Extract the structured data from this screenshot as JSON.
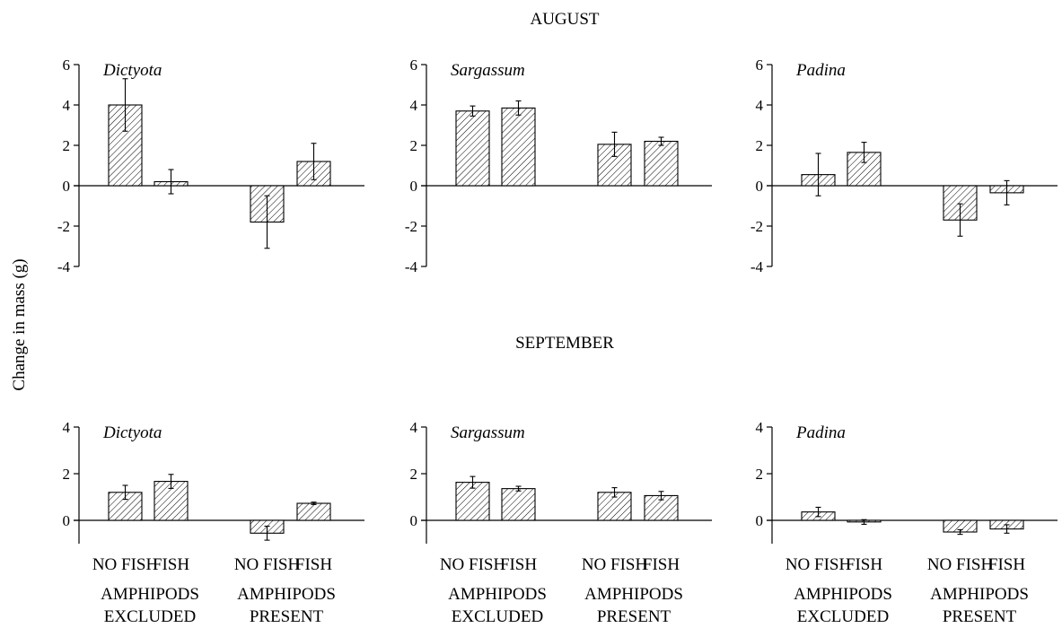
{
  "figure": {
    "ylabel": "Change in mass (g)",
    "categories": [
      "NO FISH",
      "FISH",
      "NO FISH",
      "FISH"
    ],
    "groups": [
      {
        "line1": "AMPHIPODS",
        "line2": "EXCLUDED"
      },
      {
        "line1": "AMPHIPODS",
        "line2": "PRESENT"
      }
    ],
    "rows": [
      {
        "title": "AUGUST",
        "ylim": [
          -4,
          6
        ],
        "yticks": [
          -4,
          -2,
          0,
          2,
          4,
          6
        ]
      },
      {
        "title": "SEPTEMBER",
        "ylim": [
          -1,
          4
        ],
        "yticks": [
          0,
          2,
          4
        ]
      }
    ]
  },
  "chart_data": [
    {
      "type": "bar",
      "month": "AUGUST",
      "title": "Dictyota",
      "categories": [
        "NO FISH",
        "FISH",
        "NO FISH",
        "FISH"
      ],
      "groups": [
        "AMPHIPODS EXCLUDED",
        "AMPHIPODS PRESENT"
      ],
      "values": [
        4.0,
        0.2,
        -1.8,
        1.2
      ],
      "errors": [
        1.3,
        0.6,
        1.3,
        0.9
      ],
      "ylim": [
        -4,
        6
      ]
    },
    {
      "type": "bar",
      "month": "AUGUST",
      "title": "Sargassum",
      "categories": [
        "NO FISH",
        "FISH",
        "NO FISH",
        "FISH"
      ],
      "groups": [
        "AMPHIPODS EXCLUDED",
        "AMPHIPODS PRESENT"
      ],
      "values": [
        3.7,
        3.85,
        2.05,
        2.2
      ],
      "errors": [
        0.25,
        0.35,
        0.6,
        0.2
      ],
      "ylim": [
        -4,
        6
      ]
    },
    {
      "type": "bar",
      "month": "AUGUST",
      "title": "Padina",
      "categories": [
        "NO FISH",
        "FISH",
        "NO FISH",
        "FISH"
      ],
      "groups": [
        "AMPHIPODS EXCLUDED",
        "AMPHIPODS PRESENT"
      ],
      "values": [
        0.55,
        1.65,
        -1.7,
        -0.35
      ],
      "errors": [
        1.05,
        0.5,
        0.8,
        0.6
      ],
      "ylim": [
        -4,
        6
      ]
    },
    {
      "type": "bar",
      "month": "SEPTEMBER",
      "title": "Dictyota",
      "categories": [
        "NO FISH",
        "FISH",
        "NO FISH",
        "FISH"
      ],
      "groups": [
        "AMPHIPODS EXCLUDED",
        "AMPHIPODS PRESENT"
      ],
      "values": [
        1.2,
        1.67,
        -0.55,
        0.73
      ],
      "errors": [
        0.3,
        0.3,
        0.3,
        0.05
      ],
      "ylim": [
        -1,
        4
      ]
    },
    {
      "type": "bar",
      "month": "SEPTEMBER",
      "title": "Sargassum",
      "categories": [
        "NO FISH",
        "FISH",
        "NO FISH",
        "FISH"
      ],
      "groups": [
        "AMPHIPODS EXCLUDED",
        "AMPHIPODS PRESENT"
      ],
      "values": [
        1.63,
        1.36,
        1.2,
        1.06
      ],
      "errors": [
        0.25,
        0.1,
        0.2,
        0.18
      ],
      "ylim": [
        -1,
        4
      ]
    },
    {
      "type": "bar",
      "month": "SEPTEMBER",
      "title": "Padina",
      "categories": [
        "NO FISH",
        "FISH",
        "NO FISH",
        "FISH"
      ],
      "groups": [
        "AMPHIPODS EXCLUDED",
        "AMPHIPODS PRESENT"
      ],
      "values": [
        0.36,
        -0.07,
        -0.5,
        -0.37
      ],
      "errors": [
        0.2,
        0.1,
        0.1,
        0.18
      ],
      "ylim": [
        -1,
        4
      ]
    }
  ]
}
